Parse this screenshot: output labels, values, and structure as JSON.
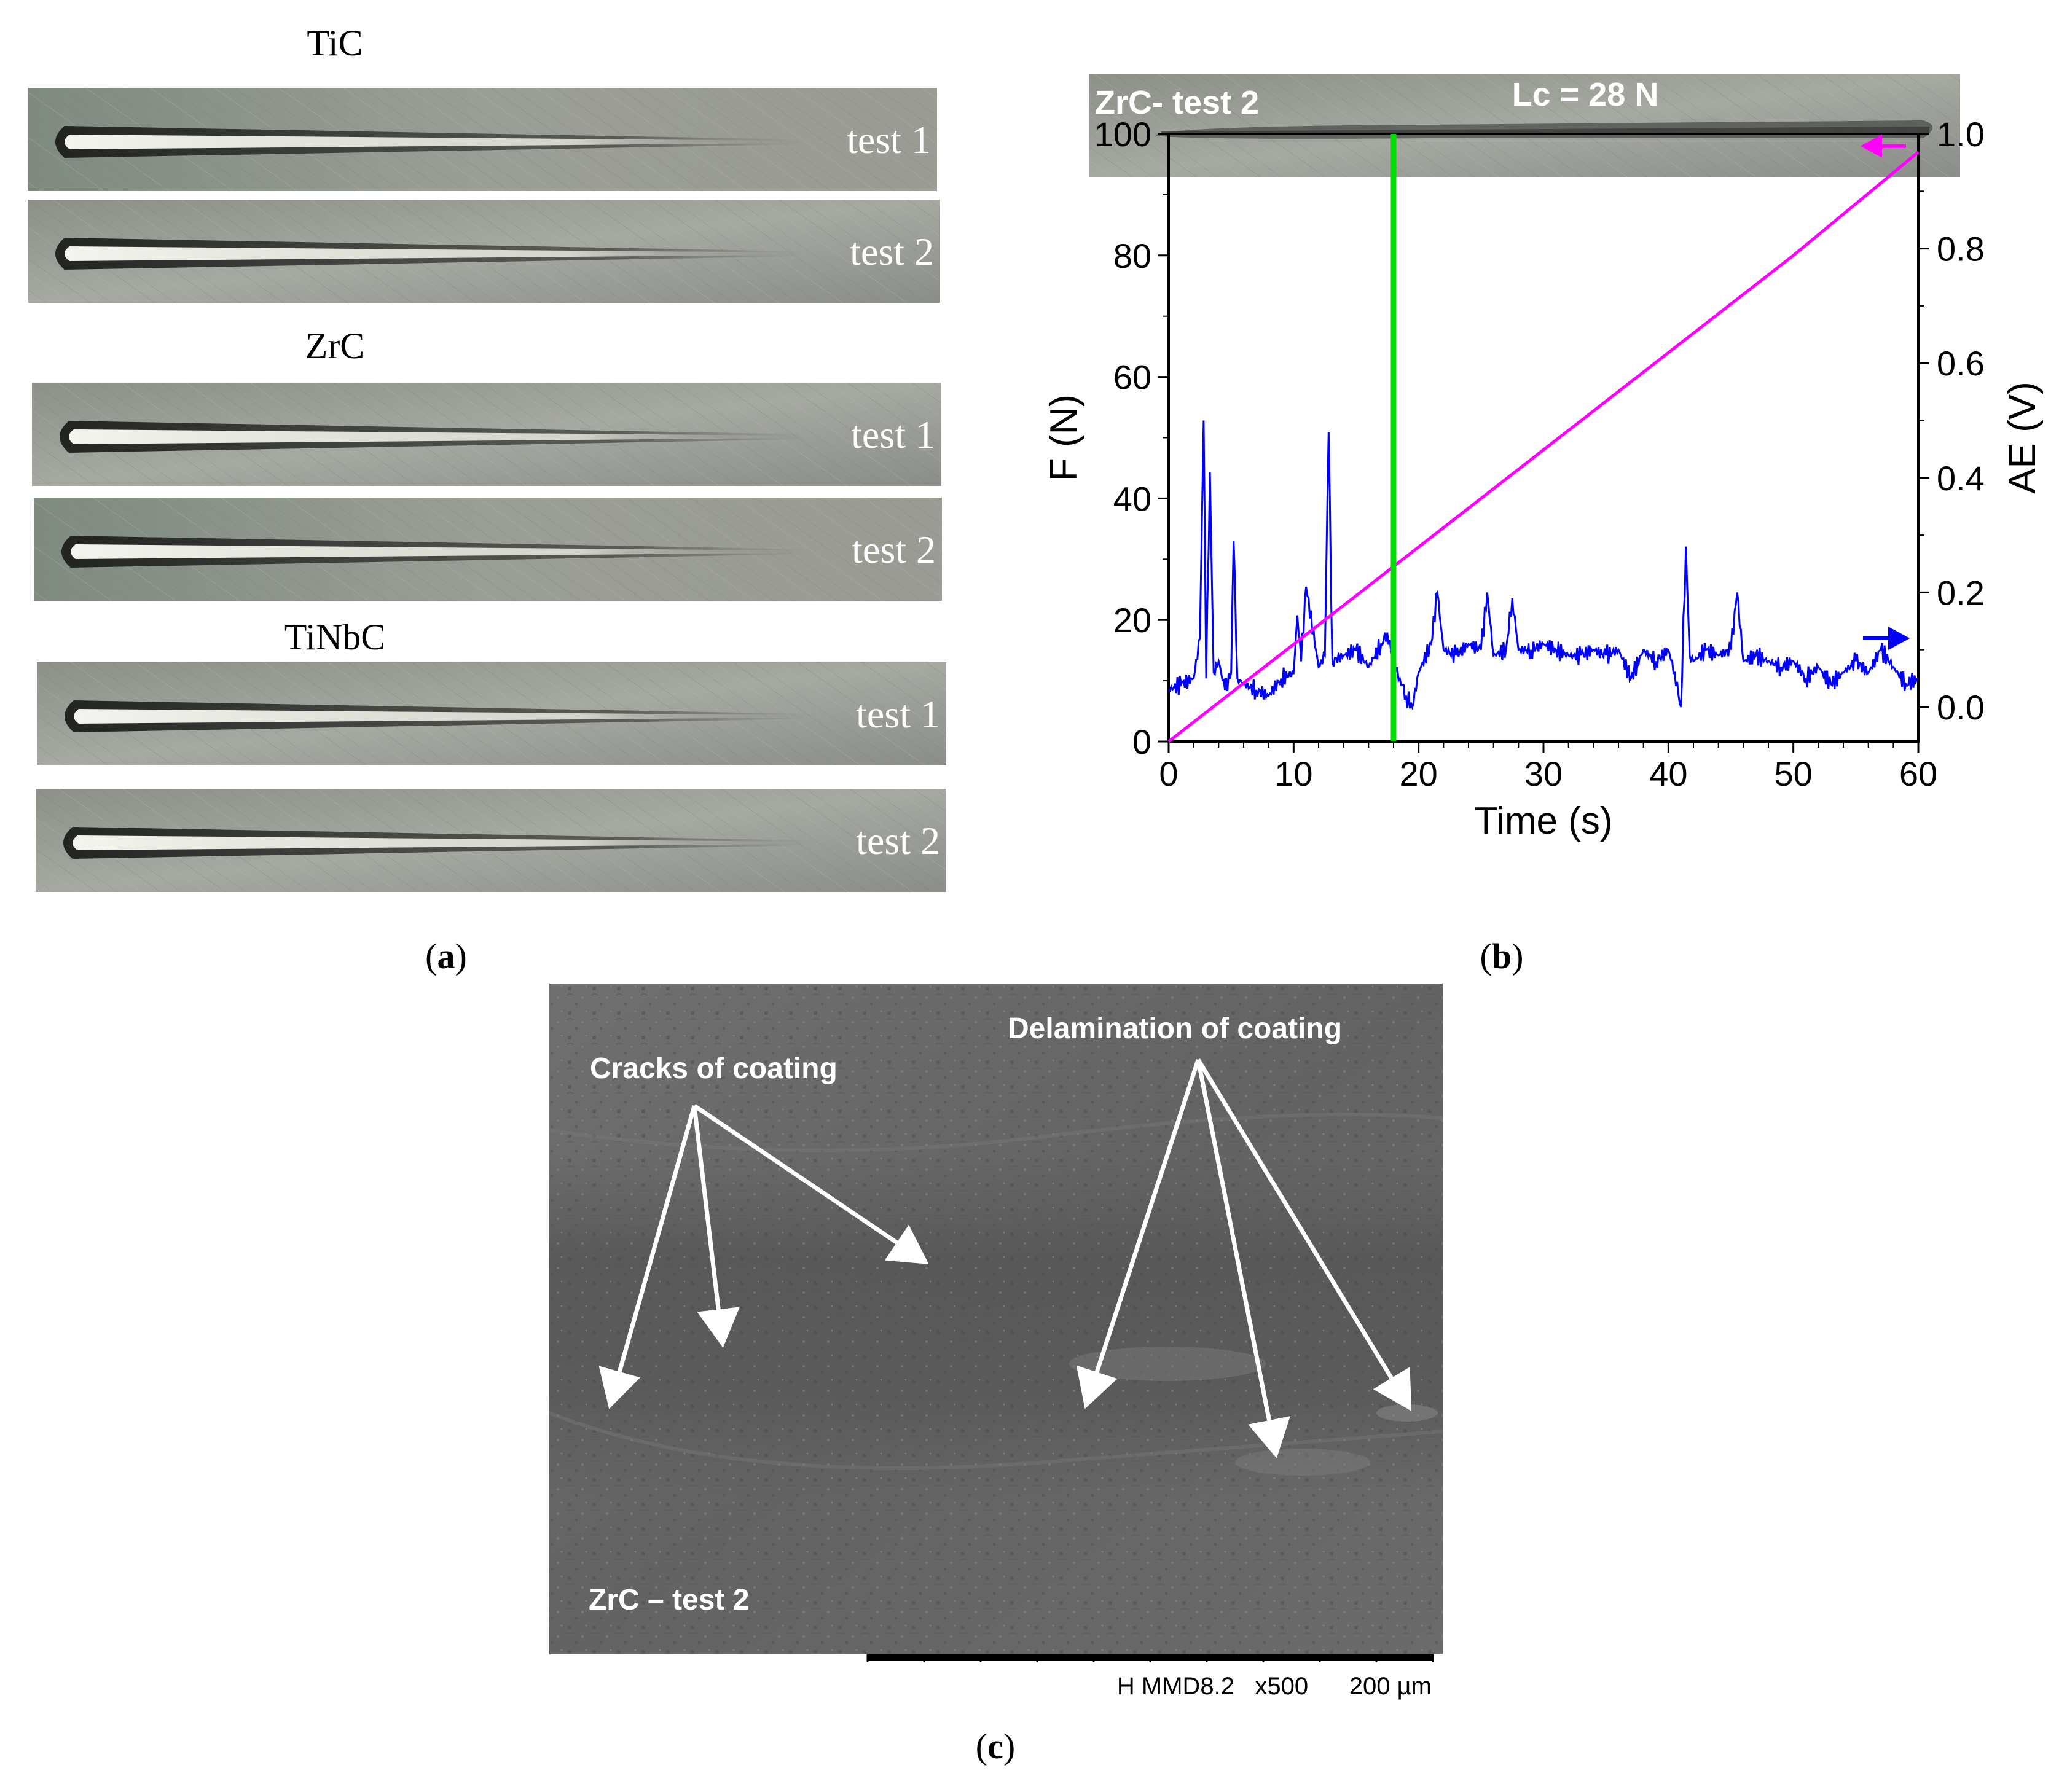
{
  "panel_a": {
    "groups": [
      {
        "title": "TiC",
        "strips": [
          "test 1",
          "test 2"
        ]
      },
      {
        "title": "ZrC",
        "strips": [
          "test 1",
          "test 2"
        ]
      },
      {
        "title": "TiNbC",
        "strips": [
          "test 1",
          "test 2"
        ]
      }
    ],
    "caption_prefix": "(",
    "caption_letter": "a",
    "caption_suffix": ")"
  },
  "panel_b": {
    "strip_label": "ZrC- test 2",
    "lc_label": "Lc = 28 N",
    "caption_prefix": "(",
    "caption_letter": "b",
    "caption_suffix": ")"
  },
  "panel_c": {
    "label_cracks": "Cracks of coating",
    "label_delamination": "Delamination of coating",
    "label_sample": "ZrC – test 2",
    "scale_text": "H MMD8.2   x500      200 µm",
    "caption_prefix": "(",
    "caption_letter": "c",
    "caption_suffix": ")"
  },
  "colors": {
    "force_line": "#ff00ff",
    "ae_line": "#0000ff",
    "critical_load_line": "#00dd00",
    "arrow_white": "#ffffff"
  },
  "chart_data": {
    "type": "line",
    "xlabel": "Time (s)",
    "ylabel": "F (N)",
    "y2label": "AE (V)",
    "xlim": [
      0,
      60
    ],
    "ylim": [
      0,
      100
    ],
    "y2lim": [
      -0.06,
      1.0
    ],
    "xticks": [
      "0",
      "10",
      "20",
      "30",
      "40",
      "50",
      "60"
    ],
    "yticks": [
      "0",
      "20",
      "40",
      "60",
      "80",
      "100"
    ],
    "y2ticks": [
      "0.0",
      "0.2",
      "0.4",
      "0.6",
      "0.8",
      "1.0"
    ],
    "critical_time": 18,
    "series": [
      {
        "axis": "left",
        "x": [
          0,
          10,
          20,
          30,
          40,
          50,
          60
        ],
        "values": [
          0,
          16,
          32,
          48,
          64,
          80,
          97
        ]
      },
      {
        "axis": "right",
        "x": [
          0,
          1,
          2,
          2.5,
          2.8,
          3.0,
          3.3,
          3.6,
          4,
          4.5,
          5,
          5.2,
          5.5,
          6,
          7,
          8,
          9,
          10,
          10.3,
          10.6,
          11,
          12,
          12.5,
          12.8,
          13.1,
          14,
          15,
          16,
          17,
          17.5,
          18,
          18.5,
          19,
          19.5,
          20,
          21,
          21.5,
          22,
          23,
          24,
          25,
          25.5,
          26,
          27,
          27.5,
          28,
          29,
          30,
          31,
          32,
          33,
          34,
          35,
          36,
          37,
          38,
          39,
          40,
          40.5,
          41,
          41.4,
          41.7,
          42,
          43,
          44,
          45,
          45.5,
          46,
          47,
          48,
          49,
          50,
          51,
          52,
          53,
          54,
          55,
          56,
          57,
          58,
          59,
          60
        ],
        "values": [
          0.03,
          0.04,
          0.05,
          0.12,
          0.5,
          0.05,
          0.41,
          0.06,
          0.08,
          0.03,
          0.06,
          0.29,
          0.05,
          0.04,
          0.03,
          0.02,
          0.05,
          0.06,
          0.16,
          0.08,
          0.21,
          0.07,
          0.09,
          0.48,
          0.08,
          0.09,
          0.1,
          0.07,
          0.11,
          0.13,
          0.08,
          0.05,
          0.02,
          0.0,
          0.06,
          0.11,
          0.2,
          0.1,
          0.09,
          0.11,
          0.1,
          0.2,
          0.09,
          0.1,
          0.19,
          0.1,
          0.1,
          0.11,
          0.1,
          0.09,
          0.09,
          0.1,
          0.09,
          0.1,
          0.05,
          0.1,
          0.08,
          0.1,
          0.06,
          0.0,
          0.28,
          0.09,
          0.08,
          0.1,
          0.09,
          0.1,
          0.2,
          0.08,
          0.09,
          0.08,
          0.07,
          0.08,
          0.05,
          0.07,
          0.04,
          0.06,
          0.08,
          0.06,
          0.1,
          0.07,
          0.04,
          0.05
        ]
      }
    ]
  }
}
